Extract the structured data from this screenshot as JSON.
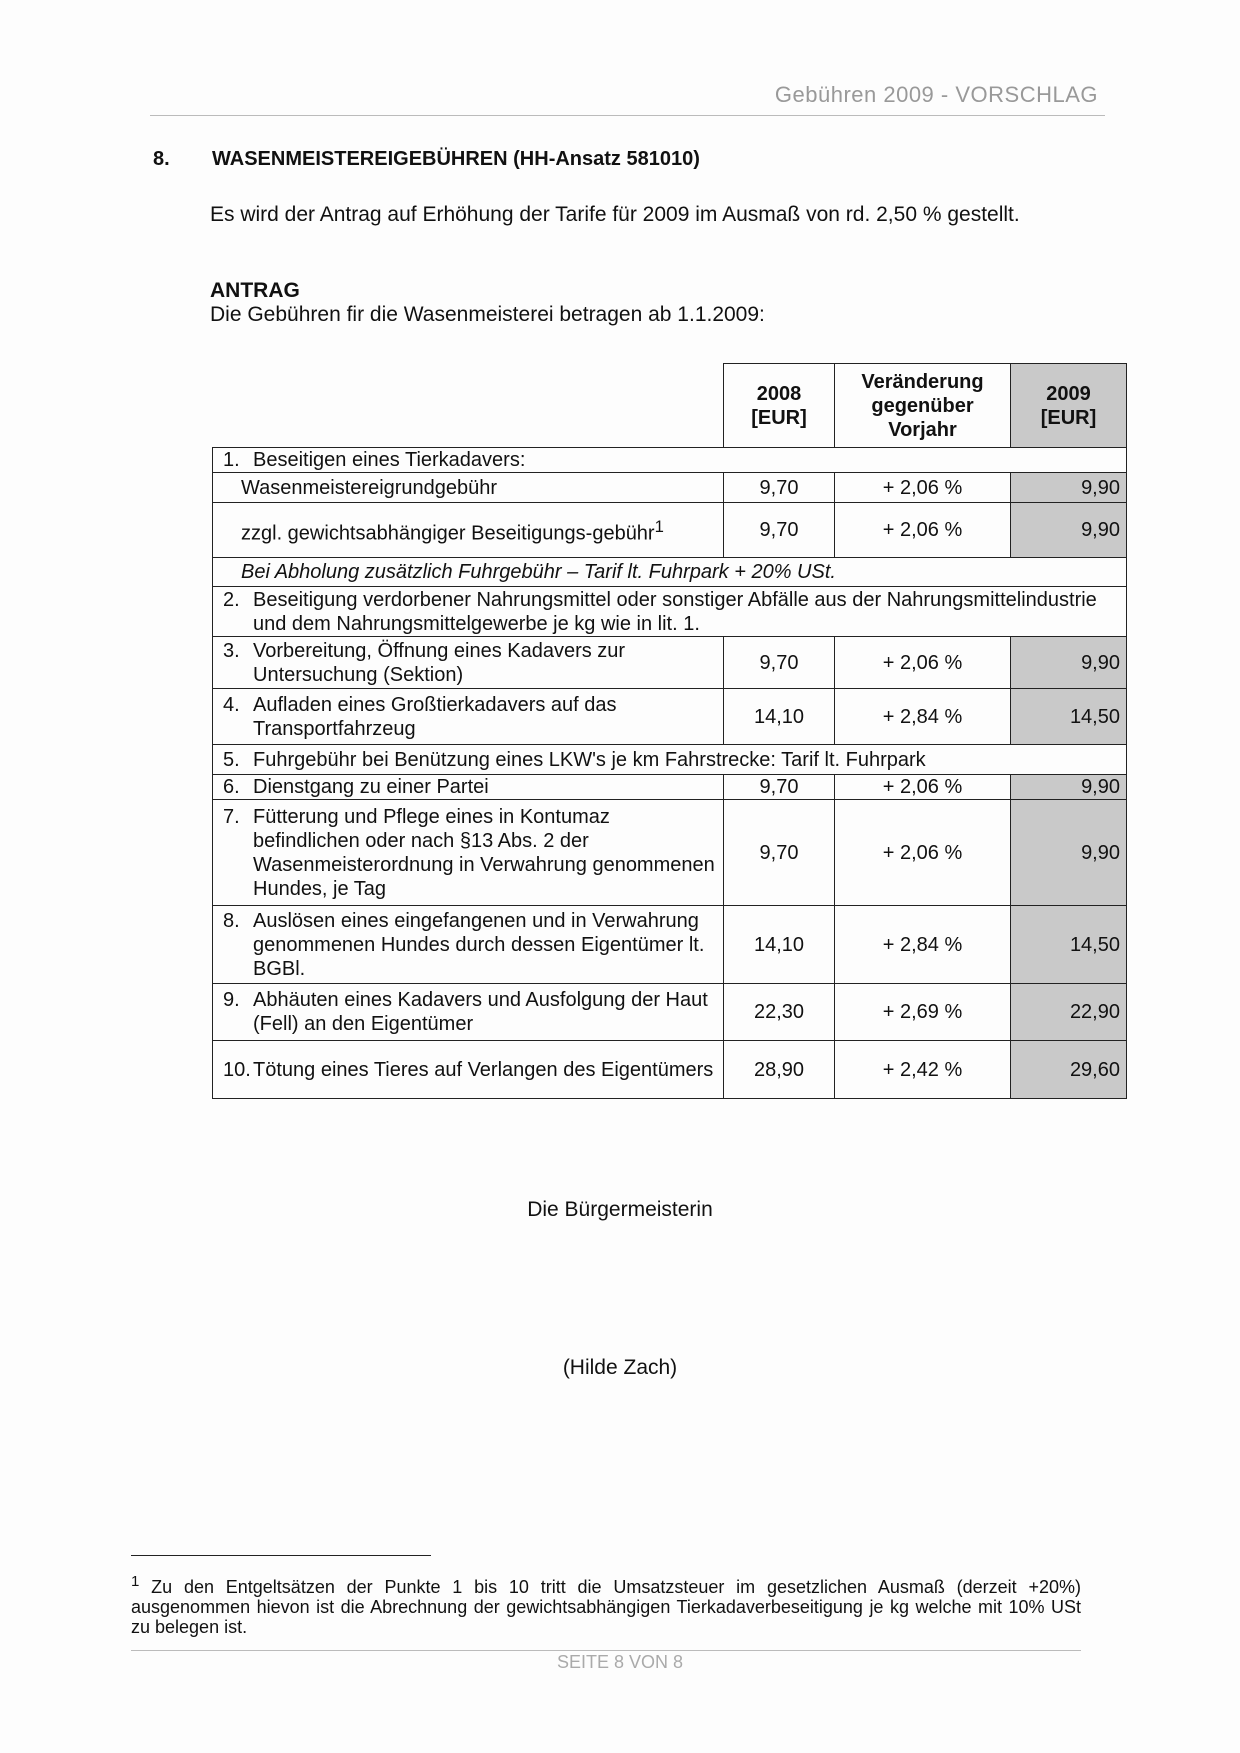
{
  "header": {
    "running_title": "Gebühren 2009 - VORSCHLAG"
  },
  "section": {
    "number": "8.",
    "title": "WASENMEISTEREIGEBÜHREN (HH-Ansatz 581010)",
    "paragraph": "Es wird der Antrag auf Erhöhung der Tarife für 2009 im Ausmaß von rd. 2,50 % gestellt.",
    "antrag_heading": "ANTRAG",
    "intro": "Die Gebühren fir die Wasenmeisterei betragen ab 1.1.2009:"
  },
  "table": {
    "headers": [
      "2008 [EUR]",
      "Veränderung gegenüber Vorjahr",
      "2009 [EUR]"
    ],
    "rows": [
      {
        "type": "span",
        "num": "1.",
        "label": "Beseitigen eines Tierkadavers:"
      },
      {
        "type": "row",
        "num": "",
        "label": "Wasenmeistereigrundgebühr",
        "v2008": "9,70",
        "change": "+ 2,06 %",
        "v2009": "9,90"
      },
      {
        "type": "row",
        "num": "",
        "label": "zzgl. gewichtsabhängiger Beseitigungs-gebühr",
        "sup": "1",
        "v2008": "9,70",
        "change": "+ 2,06 %",
        "v2009": "9,90"
      },
      {
        "type": "italic",
        "label": "Bei Abholung zusätzlich Fuhrgebühr – Tarif lt. Fuhrpark + 20% USt."
      },
      {
        "type": "span",
        "num": "2.",
        "label": "Beseitigung verdorbener Nahrungsmittel oder sonstiger Abfälle aus der Nahrungsmittelindustrie und dem Nahrungsmittelgewerbe je kg wie in lit. 1."
      },
      {
        "type": "row",
        "num": "3.",
        "label": "Vorbereitung, Öffnung eines Kadavers zur Untersuchung (Sektion)",
        "v2008": "9,70",
        "change": "+ 2,06 %",
        "v2009": "9,90"
      },
      {
        "type": "row",
        "num": "4.",
        "label": "Aufladen eines Großtierkadavers auf das Transportfahrzeug",
        "v2008": "14,10",
        "change": "+ 2,84 %",
        "v2009": "14,50"
      },
      {
        "type": "span",
        "num": "5.",
        "label": "Fuhrgebühr bei Benützung eines LKW's je km Fahrstrecke: Tarif lt. Fuhrpark"
      },
      {
        "type": "row",
        "num": "6.",
        "label": "Dienstgang zu einer Partei",
        "v2008": "9,70",
        "change": "+ 2,06 %",
        "v2009": "9,90"
      },
      {
        "type": "row",
        "num": "7.",
        "label": "Fütterung und Pflege eines in Kontumaz befindlichen oder nach §13 Abs. 2 der Wasenmeisterordnung in Verwahrung genommenen Hundes, je Tag",
        "v2008": "9,70",
        "change": "+ 2,06 %",
        "v2009": "9,90"
      },
      {
        "type": "row",
        "num": "8.",
        "label": "Auslösen eines eingefangenen und in Verwahrung genommenen Hundes durch dessen Eigentümer lt. BGBl.",
        "v2008": "14,10",
        "change": "+ 2,84 %",
        "v2009": "14,50"
      },
      {
        "type": "row",
        "num": "9.",
        "label": "Abhäuten eines Kadavers und Ausfolgung der Haut (Fell) an den Eigentümer",
        "v2008": "22,30",
        "change": "+ 2,69 %",
        "v2009": "22,90"
      },
      {
        "type": "row",
        "num": "10.",
        "label": "Tötung eines Tieres auf Verlangen des Eigentümers",
        "v2008": "28,90",
        "change": "+ 2,42 %",
        "v2009": "29,60"
      }
    ]
  },
  "signature": {
    "role": "Die Bürgermeisterin",
    "name": "(Hilde Zach)"
  },
  "footnote": {
    "mark": "1",
    "text": "Zu den Entgeltsätzen der Punkte 1 bis 10 tritt die Umsatzsteuer im gesetzlichen Ausmaß (derzeit +20%) ausgenommen hievon ist die Abrechnung der gewichtsabhängigen Tierkadaverbeseitigung je kg welche mit 10% USt zu belegen ist."
  },
  "footer": {
    "page": "SEITE 8 VON 8"
  },
  "colors": {
    "shaded_column": "#c9c9c9",
    "running_text": "#999999"
  }
}
